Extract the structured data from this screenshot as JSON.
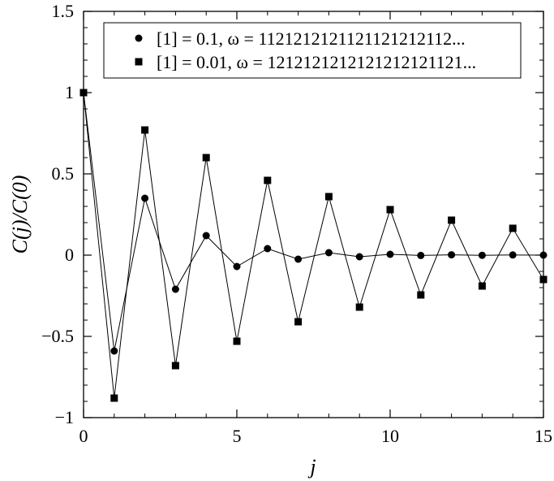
{
  "chart_data": {
    "type": "line",
    "title": "",
    "xlabel": "j",
    "ylabel": "C(j)/C(0)",
    "xlim": [
      0,
      15
    ],
    "ylim": [
      -1,
      1.5
    ],
    "x_ticks": [
      0,
      5,
      10,
      15
    ],
    "y_ticks": [
      -1,
      -0.5,
      0,
      0.5,
      1,
      1.5
    ],
    "x_tick_labels": [
      "0",
      "5",
      "10",
      "15"
    ],
    "y_tick_labels": [
      "−1",
      "−0.5",
      "0",
      "0.5",
      "1",
      "1.5"
    ],
    "grid": false,
    "legend_position": "top-right",
    "x": [
      0,
      1,
      2,
      3,
      4,
      5,
      6,
      7,
      8,
      9,
      10,
      11,
      12,
      13,
      14,
      15
    ],
    "series": [
      {
        "name": "[1] = 0.1,     ω = 1121212121121121212112...",
        "marker": "circle",
        "color": "#000000",
        "values": [
          1.0,
          -0.59,
          0.35,
          -0.21,
          0.12,
          -0.07,
          0.04,
          -0.025,
          0.015,
          -0.01,
          0.005,
          -0.002,
          0.002,
          -0.001,
          0.001,
          0.0
        ]
      },
      {
        "name": "[1] = 0.01,   ω = 1212121212121212121121...",
        "marker": "square",
        "color": "#000000",
        "values": [
          1.0,
          -0.88,
          0.77,
          -0.68,
          0.6,
          -0.53,
          0.46,
          -0.41,
          0.36,
          -0.32,
          0.28,
          -0.245,
          0.215,
          -0.19,
          0.165,
          -0.15
        ]
      }
    ]
  }
}
